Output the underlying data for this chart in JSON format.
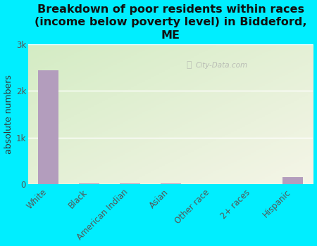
{
  "title": "Breakdown of poor residents within races\n(income below poverty level) in Biddeford,\nME",
  "categories": [
    "White",
    "Black",
    "American Indian",
    "Asian",
    "Other race",
    "2+ races",
    "Hispanic"
  ],
  "values": [
    2450,
    20,
    10,
    20,
    5,
    5,
    155
  ],
  "bar_color": "#b39dbd",
  "ylabel": "absolute numbers",
  "ylim": [
    0,
    3000
  ],
  "yticks": [
    0,
    1000,
    2000,
    3000
  ],
  "ytick_labels": [
    "0",
    "1k",
    "2k",
    "3k"
  ],
  "background_outer": "#00eeff",
  "grid_color": "#ffffff",
  "watermark": "City-Data.com",
  "title_fontsize": 11.5,
  "ylabel_fontsize": 9,
  "tick_fontsize": 8.5,
  "plot_bg_color_topleft": "#d4ecc4",
  "plot_bg_color_bottomright": "#f5f5e8"
}
